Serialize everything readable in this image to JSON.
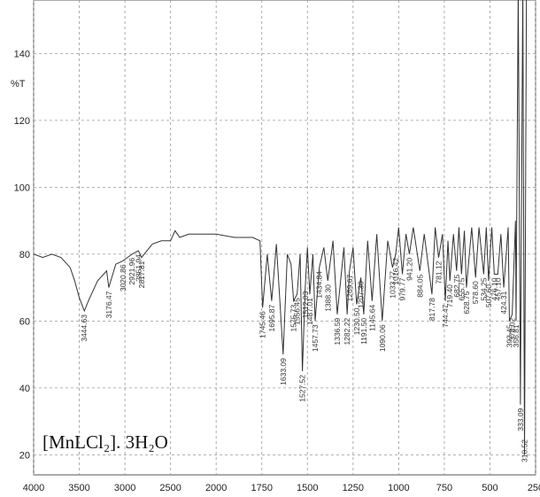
{
  "chart_data": {
    "type": "line",
    "y_label": "%T",
    "annotation": "[MnLCl₂]. 3H₂O",
    "color": "#333333",
    "grid": true,
    "xlim": [
      4000,
      250
    ],
    "xticks": [
      4000,
      3500,
      3000,
      2500,
      2000,
      1750,
      1500,
      1250,
      1000,
      750,
      500,
      250
    ],
    "ylim": [
      14,
      156
    ],
    "yticks": [
      20,
      40,
      60,
      80,
      100,
      120,
      140
    ],
    "x": [
      4000,
      3900,
      3800,
      3700,
      3600,
      3550,
      3500,
      3444.63,
      3400,
      3300,
      3200,
      3176.47,
      3100,
      3020.86,
      2921.96,
      2851.94,
      2817.81,
      2700,
      2600,
      2500,
      2450,
      2400,
      2300,
      2200,
      2100,
      2000,
      1900,
      1800,
      1760,
      1745.46,
      1720,
      1695.87,
      1670,
      1633.09,
      1610,
      1590,
      1575.73,
      1556.45,
      1540,
      1527.52,
      1512.03,
      1500,
      1487.01,
      1470,
      1457.73,
      1434.84,
      1410,
      1388.3,
      1360,
      1336.59,
      1300,
      1282.22,
      1269.67,
      1250,
      1230.5,
      1207.3,
      1191.5,
      1170,
      1145.64,
      1120,
      1090.06,
      1060,
      1033.77,
      1016.42,
      1000,
      979.77,
      960,
      941.2,
      920,
      884.05,
      860,
      817.78,
      800,
      781.12,
      760,
      744.47,
      730,
      719.4,
      700,
      682.75,
      670,
      655.75,
      640,
      628.75,
      600,
      578.6,
      560,
      534.25,
      520,
      507.6,
      490,
      476.1,
      457.1,
      440,
      424.31,
      400,
      393.45,
      378.02,
      360,
      356.81,
      345,
      333.09,
      320,
      310.52,
      300,
      250
    ],
    "values": [
      80,
      79,
      80,
      79,
      76,
      72,
      67,
      63,
      66,
      72,
      75,
      70,
      77,
      78,
      80,
      81,
      79,
      83,
      84,
      84,
      87,
      85,
      86,
      86,
      86,
      86,
      85,
      85,
      84,
      64,
      80,
      66,
      83,
      50,
      80,
      77,
      66,
      68,
      80,
      45,
      70,
      82,
      68,
      80,
      60,
      76,
      82,
      72,
      84,
      62,
      82,
      62,
      75,
      82,
      65,
      73,
      62,
      84,
      66,
      86,
      60,
      84,
      76,
      80,
      88,
      74,
      86,
      80,
      88,
      75,
      86,
      68,
      88,
      79,
      86,
      66,
      84,
      72,
      86,
      75,
      88,
      74,
      87,
      70,
      88,
      73,
      88,
      74,
      88,
      72,
      88,
      74,
      74,
      86,
      70,
      88,
      60,
      62,
      90,
      60,
      160,
      35,
      160,
      20,
      160,
      160
    ],
    "peaks": {
      "x": [
        3444.63,
        3176.47,
        3020.86,
        2921.96,
        2851.94,
        2817.81,
        1745.46,
        1695.87,
        1633.09,
        1575.73,
        1556.45,
        1527.52,
        1512.03,
        1487.01,
        1457.73,
        1434.84,
        1388.3,
        1336.59,
        1282.22,
        1269.67,
        1230.5,
        1207.3,
        1191.5,
        1145.64,
        1090.06,
        1033.77,
        1016.42,
        979.77,
        941.2,
        884.05,
        817.78,
        781.12,
        744.47,
        719.4,
        682.75,
        655.75,
        628.75,
        578.6,
        534.25,
        507.6,
        476.1,
        457.1,
        424.31,
        393.45,
        378.02,
        356.81,
        333.09,
        310.52
      ],
      "labels": [
        "3444.63",
        "3176.47",
        "3020.86",
        "2921.96",
        "2851.94",
        "2817.81",
        "1745.46",
        "1695.87",
        "1633.09",
        "1575.73",
        "1556.45",
        "1527.52",
        "1512.03",
        "1487.01",
        "1457.73",
        "1434.84",
        "1388.30",
        "1336.59",
        "1282.22",
        "1269.67",
        "1230.50",
        "1207.30",
        "1191.50",
        "1145.64",
        "1090.06",
        "1033.77",
        "1016.42",
        "979.77",
        "941.20",
        "884.05",
        "817.78",
        "781.12",
        "744.47",
        "719.40",
        "682.75",
        "655.75",
        "628.75",
        "578.60",
        "534.25",
        "507.60",
        "476.10",
        "457.10",
        "424.31",
        "393.45",
        "378.02",
        "356.81",
        "333.09",
        "310.52"
      ]
    }
  }
}
